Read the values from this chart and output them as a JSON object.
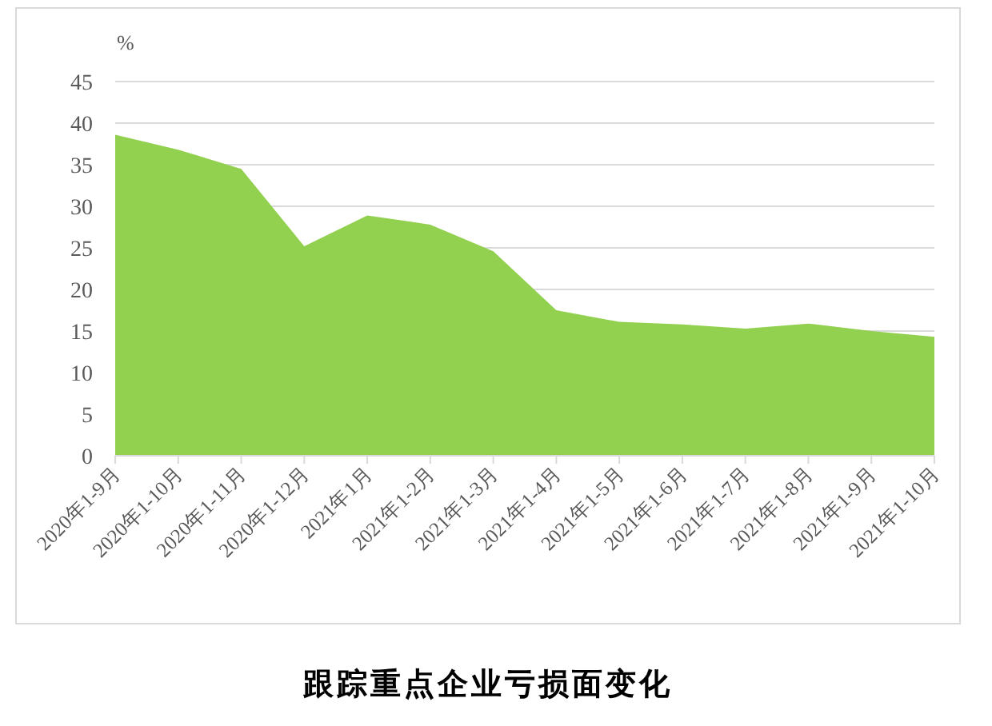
{
  "chart_data": {
    "type": "area",
    "title": "跟踪重点企业亏损面变化",
    "ylabel": "%",
    "categories": [
      "2020年1-9月",
      "2020年1-10月",
      "2020年1-11月",
      "2020年1-12月",
      "2021年1月",
      "2021年1-2月",
      "2021年1-3月",
      "2021年1-4月",
      "2021年1-5月",
      "2021年1-6月",
      "2021年1-7月",
      "2021年1-8月",
      "2021年1-9月",
      "2021年1-10月"
    ],
    "values": [
      38.6,
      36.8,
      34.5,
      25.2,
      28.9,
      27.8,
      24.6,
      17.5,
      16.1,
      15.8,
      15.3,
      15.9,
      15.0,
      14.3
    ],
    "color": "#92d050",
    "ylim": [
      0,
      45
    ],
    "yticks": [
      0,
      5,
      10,
      15,
      20,
      25,
      30,
      35,
      40,
      45
    ],
    "grid": "y"
  }
}
